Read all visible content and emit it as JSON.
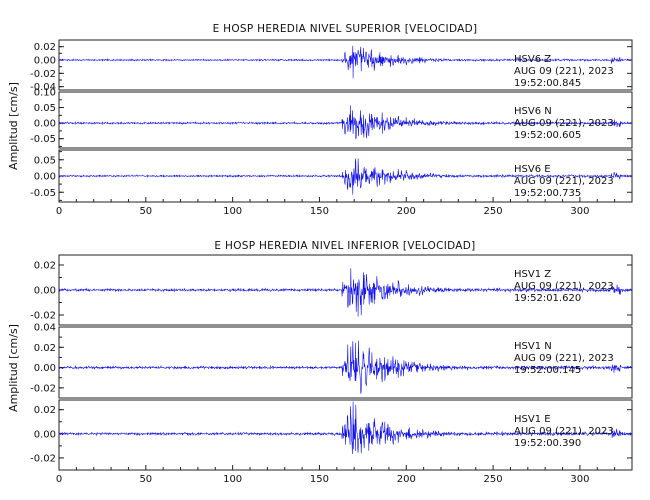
{
  "chart_data": [
    {
      "type": "line",
      "title": "E HOSP HEREDIA NIVEL SUPERIOR [VELOCIDAD]",
      "ylabel": "Amplitud [cm/s]",
      "xlabel": "",
      "xlim": [
        0,
        330
      ],
      "x_ticks": [
        0,
        50,
        100,
        150,
        200,
        250,
        300
      ],
      "grid": false,
      "line_color": "#1010ee",
      "onset_x": 163,
      "series": [
        {
          "station": "HSV6",
          "component": "Z",
          "date": "AUG 09 (221), 2023",
          "time": "19:52:00.845",
          "ylim": [
            -0.045,
            0.03
          ],
          "y_ticks": [
            -0.04,
            -0.02,
            0.0,
            0.02
          ],
          "peak_amplitude": 0.03
        },
        {
          "station": "HSV6",
          "component": "N",
          "date": "AUG 09 (221), 2023",
          "time": "19:52:00.605",
          "ylim": [
            -0.08,
            0.1
          ],
          "y_ticks": [
            -0.05,
            0.0,
            0.05,
            0.1
          ],
          "peak_amplitude": 0.08
        },
        {
          "station": "HSV6",
          "component": "E",
          "date": "AUG 09 (221), 2023",
          "time": "19:52:00.735",
          "ylim": [
            -0.08,
            0.08
          ],
          "y_ticks": [
            -0.05,
            0.0,
            0.05
          ],
          "peak_amplitude": 0.075
        }
      ]
    },
    {
      "type": "line",
      "title": "E HOSP HEREDIA NIVEL INFERIOR [VELOCIDAD]",
      "ylabel": "Amplitud [cm/s]",
      "xlabel": "",
      "xlim": [
        0,
        330
      ],
      "x_ticks": [
        0,
        50,
        100,
        150,
        200,
        250,
        300
      ],
      "grid": false,
      "line_color": "#1010ee",
      "onset_x": 163,
      "series": [
        {
          "station": "HSV1",
          "component": "Z",
          "date": "AUG 09 (221), 2023",
          "time": "19:52:01.620",
          "ylim": [
            -0.028,
            0.028
          ],
          "y_ticks": [
            -0.02,
            0.0,
            0.02
          ],
          "peak_amplitude": 0.027
        },
        {
          "station": "HSV1",
          "component": "N",
          "date": "AUG 09 (221), 2023",
          "time": "19:52:00.145",
          "ylim": [
            -0.03,
            0.04
          ],
          "y_ticks": [
            -0.02,
            0.0,
            0.02,
            0.04
          ],
          "peak_amplitude": 0.035
        },
        {
          "station": "HSV1",
          "component": "E",
          "date": "AUG 09 (221), 2023",
          "time": "19:52:00.390",
          "ylim": [
            -0.03,
            0.028
          ],
          "y_ticks": [
            -0.02,
            0.0,
            0.02
          ],
          "peak_amplitude": 0.028
        }
      ]
    }
  ]
}
